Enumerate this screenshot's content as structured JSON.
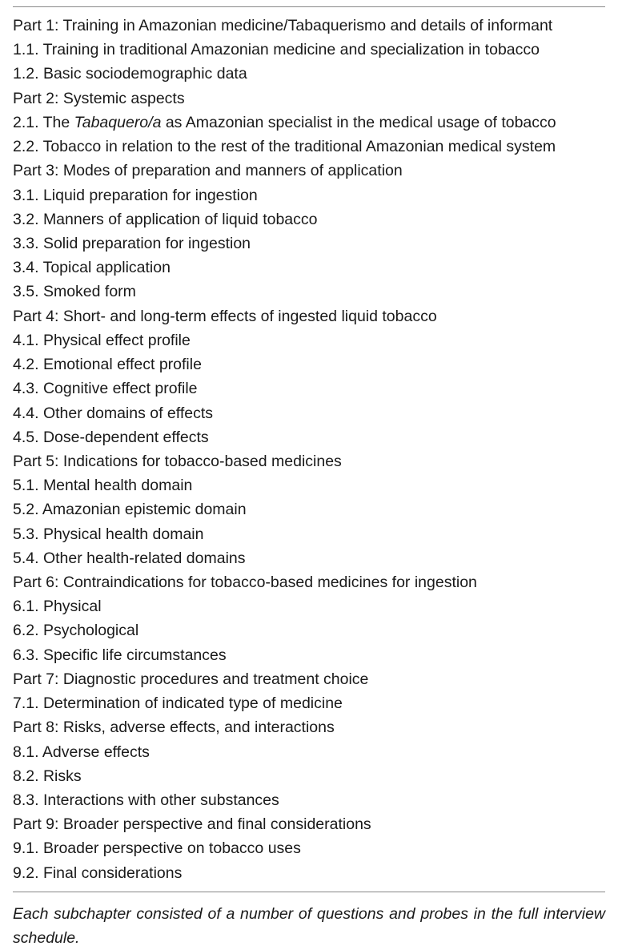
{
  "outline": {
    "lines": [
      {
        "text": "Part 1: Training in Amazonian medicine/Tabaquerismo and details of informant"
      },
      {
        "text": "1.1. Training in traditional Amazonian medicine and specialization in tobacco"
      },
      {
        "text": "1.2. Basic sociodemographic data"
      },
      {
        "text": "Part 2: Systemic aspects"
      },
      {
        "prefix": "2.1. The ",
        "italic": "Tabaquero/a",
        "suffix": " as Amazonian specialist in the medical usage of tobacco"
      },
      {
        "text": "2.2. Tobacco in relation to the rest of the traditional Amazonian medical system"
      },
      {
        "text": "Part 3: Modes of preparation and manners of application"
      },
      {
        "text": "3.1. Liquid preparation for ingestion"
      },
      {
        "text": "3.2. Manners of application of liquid tobacco"
      },
      {
        "text": "3.3. Solid preparation for ingestion"
      },
      {
        "text": "3.4. Topical application"
      },
      {
        "text": "3.5. Smoked form"
      },
      {
        "text": "Part 4: Short- and long-term effects of ingested liquid tobacco"
      },
      {
        "text": "4.1. Physical effect profile"
      },
      {
        "text": "4.2. Emotional effect profile"
      },
      {
        "text": "4.3. Cognitive effect profile"
      },
      {
        "text": "4.4. Other domains of effects"
      },
      {
        "text": "4.5. Dose-dependent effects"
      },
      {
        "text": "Part 5: Indications for tobacco-based medicines"
      },
      {
        "text": "5.1. Mental health domain"
      },
      {
        "text": "5.2. Amazonian epistemic domain"
      },
      {
        "text": "5.3. Physical health domain"
      },
      {
        "text": "5.4. Other health-related domains"
      },
      {
        "text": "Part 6: Contraindications for tobacco-based medicines for ingestion"
      },
      {
        "text": "6.1. Physical"
      },
      {
        "text": "6.2. Psychological"
      },
      {
        "text": "6.3. Specific life circumstances"
      },
      {
        "text": "Part 7: Diagnostic procedures and treatment choice"
      },
      {
        "text": "7.1. Determination of indicated type of medicine"
      },
      {
        "text": "Part 8: Risks, adverse effects, and interactions"
      },
      {
        "text": "8.1. Adverse effects"
      },
      {
        "text": "8.2. Risks"
      },
      {
        "text": "8.3. Interactions with other substances"
      },
      {
        "text": "Part 9: Broader perspective and final considerations"
      },
      {
        "text": "9.1. Broader perspective on tobacco uses"
      },
      {
        "text": "9.2. Final considerations"
      }
    ]
  },
  "footnote": "Each subchapter consisted of a number of questions and probes in the full interview schedule."
}
